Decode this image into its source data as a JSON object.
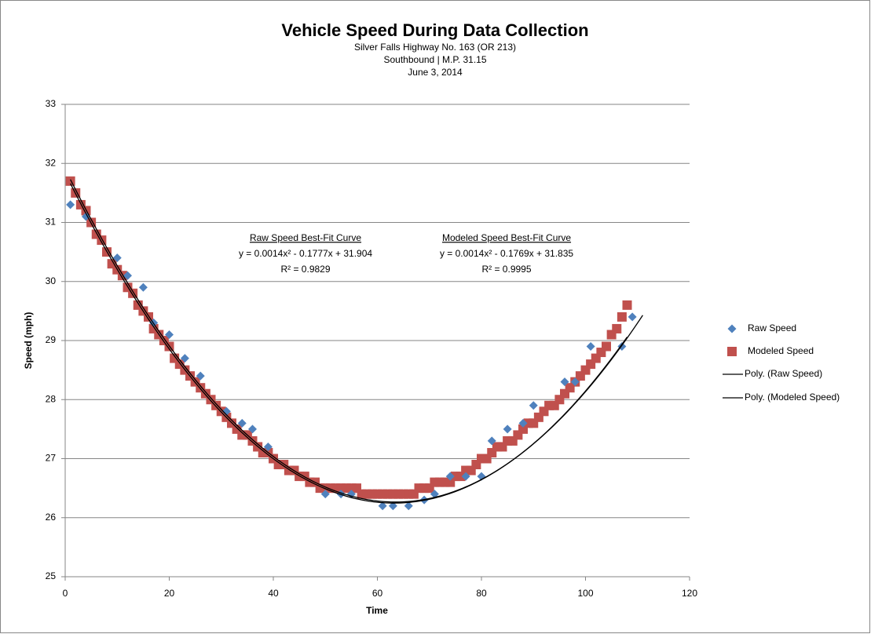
{
  "chart_data": {
    "type": "scatter",
    "title": "Vehicle Speed During Data Collection",
    "subtitle": [
      "Silver Falls Highway No. 163 (OR 213)",
      "Southbound  |  M.P. 31.15",
      "June 3, 2014"
    ],
    "x_label": "Time",
    "y_label": "Speed (mph)",
    "xlim": [
      0,
      120
    ],
    "xticks": [
      0,
      20,
      40,
      60,
      80,
      100,
      120
    ],
    "ylim": [
      25,
      33
    ],
    "yticks": [
      25,
      26,
      27,
      28,
      29,
      30,
      31,
      32,
      33
    ],
    "grid": true,
    "legend": "right",
    "series": [
      {
        "name": "Raw Speed",
        "color": "#4f81bd",
        "marker": "diamond",
        "x": [
          1,
          4,
          10,
          12,
          15,
          17,
          20,
          23,
          26,
          31,
          34,
          36,
          39,
          50,
          53,
          55,
          61,
          63,
          66,
          69,
          71,
          74,
          77,
          80,
          82,
          85,
          88,
          90,
          96,
          98,
          101,
          107,
          109
        ],
        "values": [
          31.3,
          31.1,
          30.4,
          30.1,
          29.9,
          29.3,
          29.1,
          28.7,
          28.4,
          27.8,
          27.6,
          27.5,
          27.2,
          26.4,
          26.4,
          26.4,
          26.2,
          26.2,
          26.2,
          26.3,
          26.4,
          26.7,
          26.7,
          26.7,
          27.3,
          27.5,
          27.6,
          27.9,
          28.3,
          28.3,
          28.9,
          28.9,
          29.4
        ]
      },
      {
        "name": "Modeled Speed",
        "color": "#c0504d",
        "marker": "square",
        "x": [
          1,
          2,
          3,
          4,
          5,
          6,
          7,
          8,
          9,
          10,
          11,
          12,
          13,
          14,
          15,
          16,
          17,
          18,
          19,
          20,
          21,
          22,
          23,
          24,
          25,
          26,
          27,
          28,
          29,
          30,
          31,
          32,
          33,
          34,
          35,
          36,
          37,
          38,
          39,
          40,
          41,
          42,
          43,
          44,
          45,
          46,
          47,
          48,
          49,
          50,
          51,
          52,
          53,
          54,
          55,
          56,
          57,
          58,
          59,
          60,
          61,
          62,
          63,
          64,
          65,
          66,
          67,
          68,
          69,
          70,
          71,
          72,
          73,
          74,
          75,
          76,
          77,
          78,
          79,
          80,
          81,
          82,
          83,
          84,
          85,
          86,
          87,
          88,
          89,
          90,
          91,
          92,
          93,
          94,
          95,
          96,
          97,
          98,
          99,
          100,
          101,
          102,
          103,
          104,
          105,
          106,
          107,
          108
        ],
        "values": [
          31.7,
          31.5,
          31.3,
          31.2,
          31.0,
          30.8,
          30.7,
          30.5,
          30.3,
          30.2,
          30.1,
          29.9,
          29.8,
          29.6,
          29.5,
          29.4,
          29.2,
          29.1,
          29.0,
          28.9,
          28.7,
          28.6,
          28.5,
          28.4,
          28.3,
          28.2,
          28.1,
          28.0,
          27.9,
          27.8,
          27.7,
          27.6,
          27.5,
          27.4,
          27.4,
          27.3,
          27.2,
          27.1,
          27.1,
          27.0,
          26.9,
          26.9,
          26.8,
          26.8,
          26.7,
          26.7,
          26.6,
          26.6,
          26.5,
          26.5,
          26.5,
          26.5,
          26.5,
          26.5,
          26.5,
          26.5,
          26.4,
          26.4,
          26.4,
          26.4,
          26.4,
          26.4,
          26.4,
          26.4,
          26.4,
          26.4,
          26.4,
          26.5,
          26.5,
          26.5,
          26.6,
          26.6,
          26.6,
          26.6,
          26.7,
          26.7,
          26.8,
          26.8,
          26.9,
          27.0,
          27.0,
          27.1,
          27.2,
          27.2,
          27.3,
          27.3,
          27.4,
          27.5,
          27.6,
          27.6,
          27.7,
          27.8,
          27.9,
          27.9,
          28.0,
          28.1,
          28.2,
          28.3,
          28.4,
          28.5,
          28.6,
          28.7,
          28.8,
          28.9,
          29.1,
          29.2,
          29.4,
          29.6
        ]
      }
    ],
    "trendlines": [
      {
        "name": "Poly. (Raw Speed)",
        "color": "#000000",
        "coefficients": [
          0.0014,
          -0.1777,
          31.904
        ],
        "xlim": [
          1,
          111
        ]
      },
      {
        "name": "Poly. (Modeled Speed)",
        "color": "#000000",
        "coefficients": [
          0.0014,
          -0.1769,
          31.835
        ],
        "xlim": [
          1,
          108
        ]
      }
    ],
    "annotations": [
      {
        "title": "Raw Speed Best-Fit Curve",
        "equation": "y = 0.0014x² - 0.1777x + 31.904",
        "r2": "R² = 0.9829"
      },
      {
        "title": "Modeled Speed Best-Fit Curve",
        "equation": "y = 0.0014x² - 0.1769x + 31.835",
        "r2": "R² = 0.9995"
      }
    ]
  }
}
